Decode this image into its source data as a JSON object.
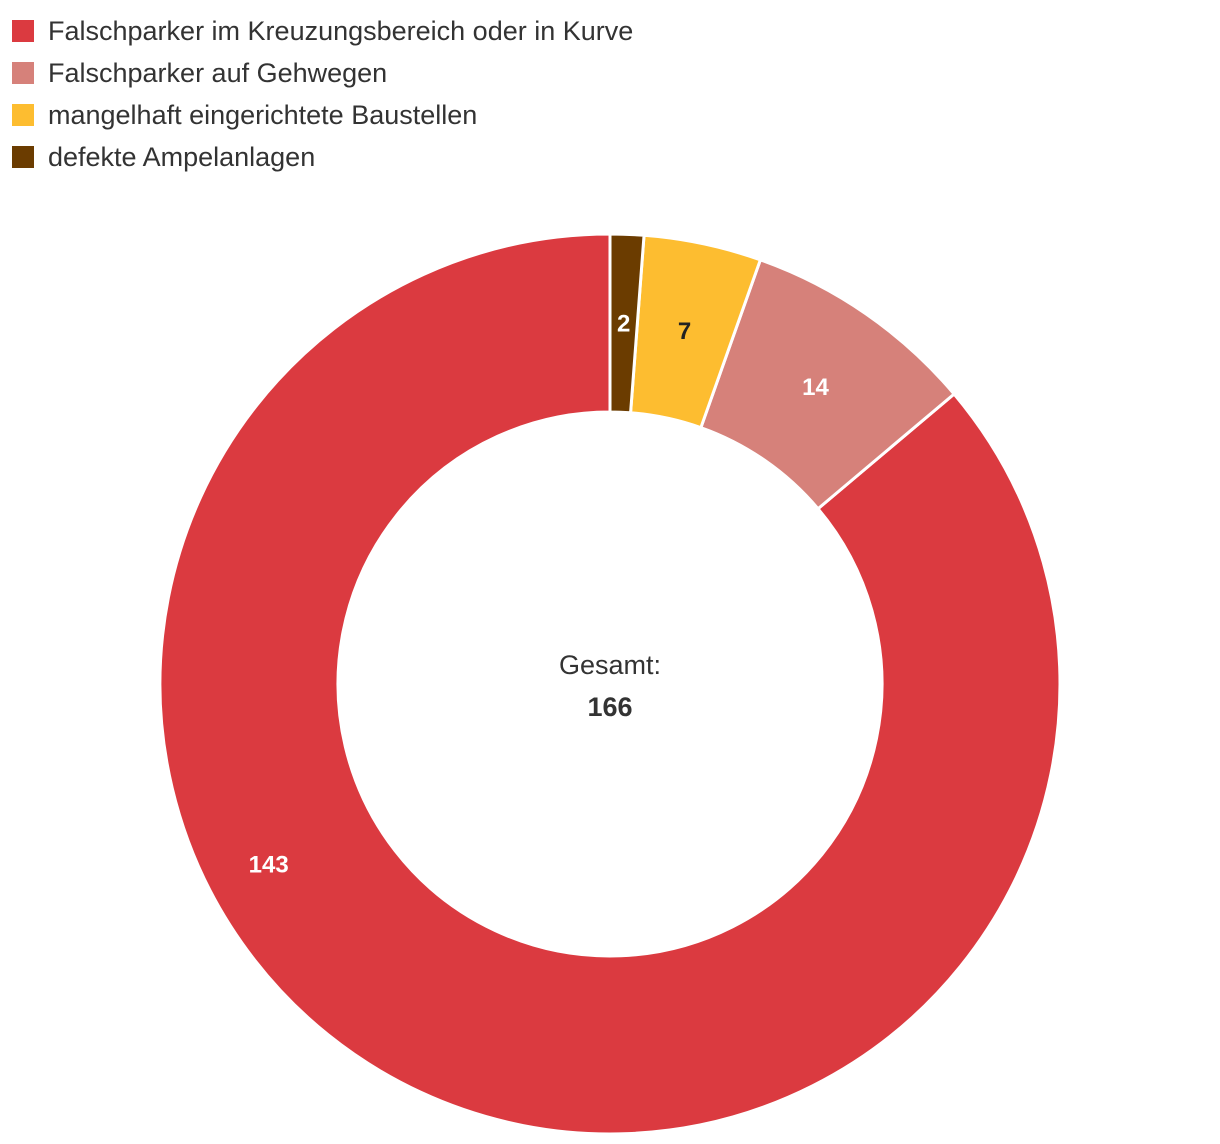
{
  "chart_data": {
    "type": "pie",
    "categories": [
      "Falschparker im Kreuzungsbereich oder in Kurve",
      "Falschparker auf Gehwegen",
      "mangelhaft eingerichtete Baustellen",
      "defekte Ampelanlagen"
    ],
    "values": [
      143,
      14,
      7,
      2
    ],
    "colors": [
      "#db3a40",
      "#d6817a",
      "#fdbd30",
      "#6b3c00"
    ],
    "value_label_colors": [
      "#ffffff",
      "#ffffff",
      "#222222",
      "#ffffff"
    ],
    "center_label": "Gesamt:",
    "total": "166",
    "legend_position": "top-left",
    "donut": true
  }
}
